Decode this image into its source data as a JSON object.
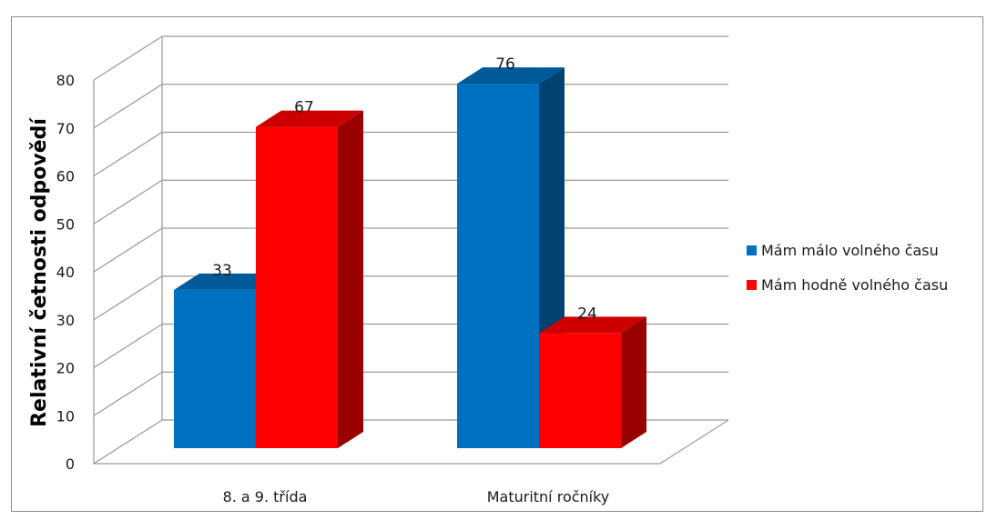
{
  "chart_data": {
    "type": "bar",
    "categories": [
      "8. a 9. třída",
      "Maturitní ročníky"
    ],
    "series": [
      {
        "name": "Mám málo volného času",
        "values": [
          33,
          76
        ],
        "color": "#0070C0"
      },
      {
        "name": "Mám hodně volného času",
        "values": [
          67,
          24
        ],
        "color": "#FF0000"
      }
    ],
    "ylabel": "Relativní četnosti odpovědí",
    "ylim": [
      0,
      80
    ],
    "yticks": [
      0,
      10,
      20,
      30,
      40,
      50,
      60,
      70,
      80
    ],
    "grid": true,
    "legend_position": "right",
    "style": "3d-clustered-column"
  }
}
